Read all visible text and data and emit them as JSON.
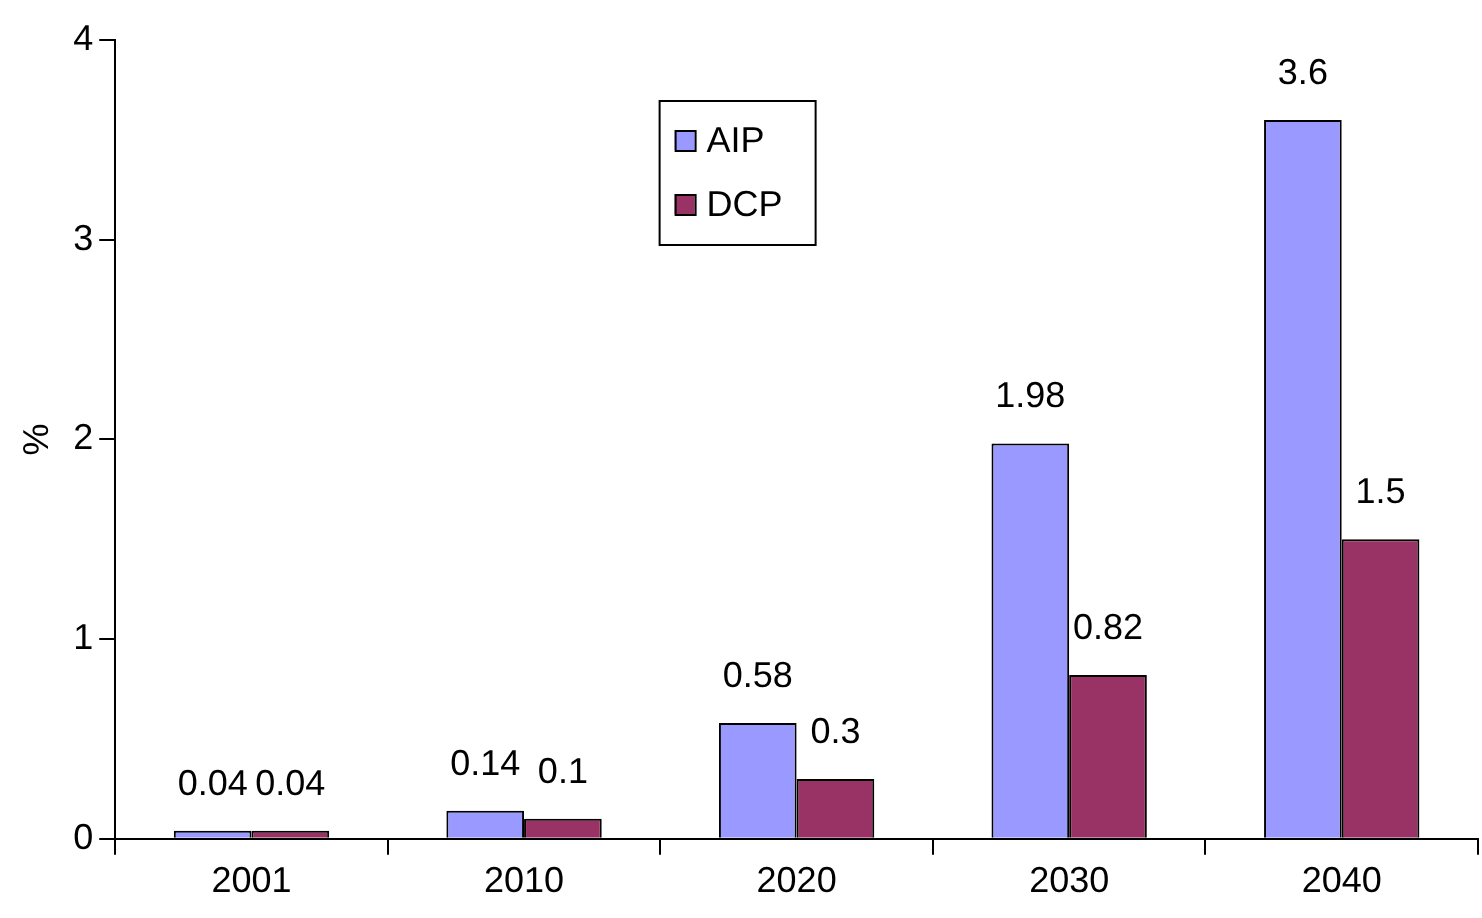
{
  "chart_data": {
    "type": "bar",
    "ylabel": "%",
    "categories": [
      "2001",
      "2010",
      "2020",
      "2030",
      "2040"
    ],
    "series": [
      {
        "name": "AIP",
        "color": "#9999ff",
        "values": [
          0.04,
          0.14,
          0.58,
          1.98,
          3.6
        ]
      },
      {
        "name": "DCP",
        "color": "#993366",
        "values": [
          0.04,
          0.1,
          0.3,
          0.82,
          1.5
        ]
      }
    ],
    "ylim": [
      0,
      4
    ],
    "yticks": [
      0,
      1,
      2,
      3,
      4
    ],
    "grid": false,
    "legend": "top",
    "data_labels": true
  }
}
